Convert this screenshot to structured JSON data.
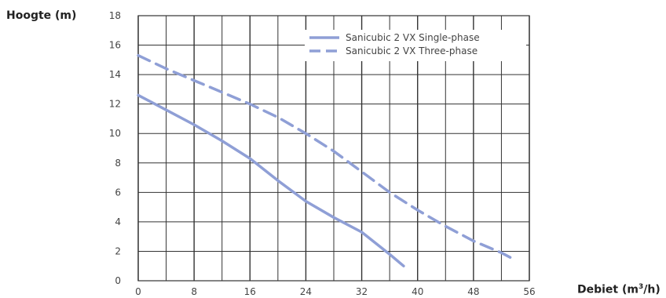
{
  "chart_data": {
    "type": "line",
    "ylabel": "Hoogte (m)",
    "xlabel_main": "Debiet (m",
    "xlabel_sup": "3",
    "xlabel_end": "/h)",
    "xlim": [
      0,
      56
    ],
    "ylim": [
      0,
      18
    ],
    "xticks": [
      0,
      8,
      16,
      24,
      32,
      40,
      48,
      56
    ],
    "yticks": [
      0,
      2,
      4,
      6,
      8,
      10,
      12,
      14,
      16,
      18
    ],
    "xtick_labels": [
      "0",
      "8",
      "16",
      "24",
      "32",
      "40",
      "48",
      "56"
    ],
    "ytick_labels": [
      "0",
      "2",
      "4",
      "6",
      "8",
      "10",
      "12",
      "14",
      "16",
      "18"
    ],
    "grid": true,
    "legend_position": "top-right",
    "series_color": "#8f9fd6",
    "series": [
      {
        "name": "Sanicubic 2 VX Single-phase",
        "style": "solid",
        "x": [
          0,
          4,
          8,
          12,
          16,
          20,
          24,
          28,
          32,
          36,
          38
        ],
        "y": [
          12.6,
          11.6,
          10.6,
          9.5,
          8.3,
          6.8,
          5.4,
          4.3,
          3.3,
          1.8,
          1.0
        ]
      },
      {
        "name": "Sanicubic 2 VX Three-phase",
        "style": "dashed",
        "x": [
          0,
          4,
          8,
          12,
          16,
          20,
          24,
          28,
          32,
          36,
          40,
          44,
          48,
          52,
          54
        ],
        "y": [
          15.3,
          14.4,
          13.6,
          12.8,
          12.0,
          11.1,
          10.0,
          8.8,
          7.4,
          6.0,
          4.8,
          3.7,
          2.7,
          1.9,
          1.4
        ]
      }
    ]
  }
}
